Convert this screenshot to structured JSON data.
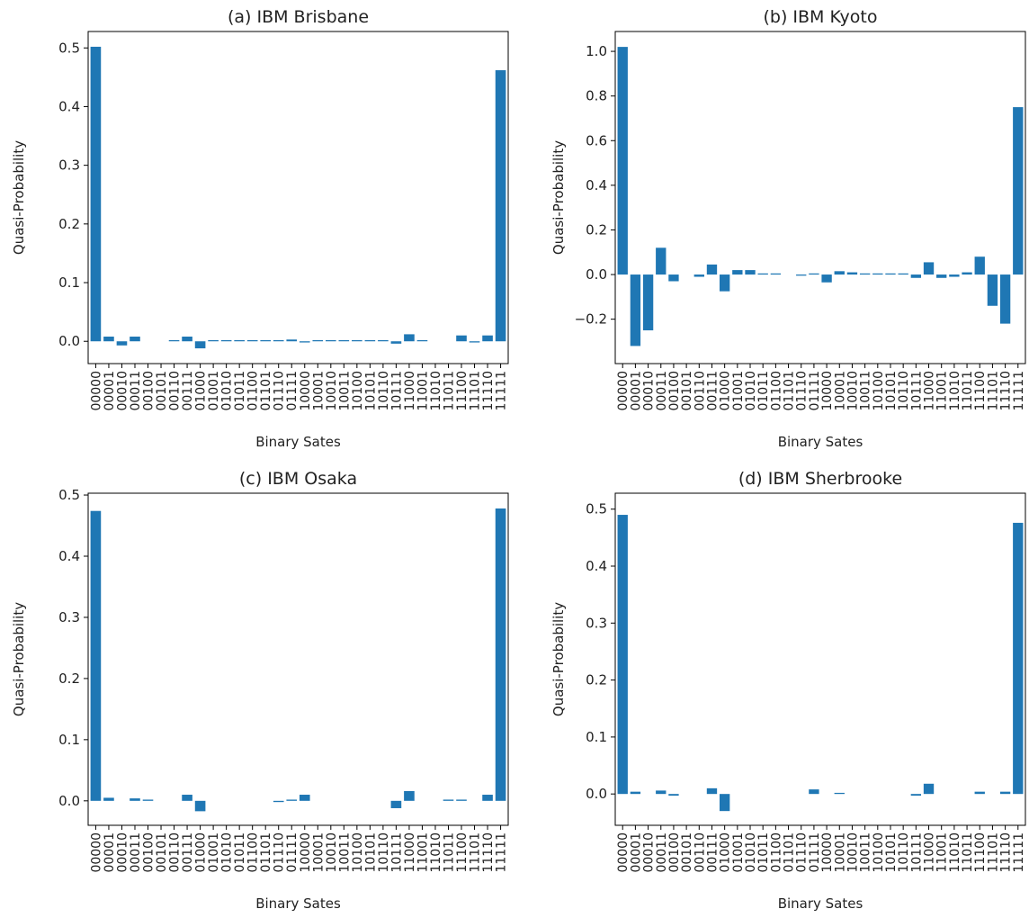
{
  "chart_data": [
    {
      "type": "bar",
      "title": "(a) IBM Brisbane",
      "x_label": "Binary Sates",
      "y_label": "Quasi-Probability",
      "color": "#1f77b4",
      "categories": [
        "00000",
        "00001",
        "00010",
        "00011",
        "00100",
        "00101",
        "00110",
        "00111",
        "01000",
        "01001",
        "01010",
        "01011",
        "01100",
        "01101",
        "01110",
        "01111",
        "10000",
        "10001",
        "10010",
        "10011",
        "10100",
        "10101",
        "10110",
        "10111",
        "11000",
        "11001",
        "11010",
        "11011",
        "11100",
        "11101",
        "11110",
        "11111"
      ],
      "values": [
        0.502,
        0.008,
        -0.007,
        0.008,
        0,
        0,
        0.002,
        0.008,
        -0.012,
        0.002,
        0.002,
        0.002,
        0.002,
        0.002,
        0.002,
        0.003,
        -0.002,
        0.002,
        0.002,
        0.002,
        0.002,
        0.002,
        0.002,
        -0.004,
        0.012,
        0.002,
        0,
        0,
        0.01,
        -0.002,
        0.01,
        0.462
      ],
      "ylim": [
        -0.038,
        0.528
      ],
      "yticks": [
        {
          "value": 0,
          "label": "0.0"
        },
        0.1,
        0.2,
        0.3,
        0.4,
        0.5
      ]
    },
    {
      "type": "bar",
      "title": "(b) IBM Kyoto",
      "x_label": "Binary Sates",
      "y_label": "Quasi-Probability",
      "color": "#1f77b4",
      "categories": [
        "00000",
        "00001",
        "00010",
        "00011",
        "00100",
        "00101",
        "00110",
        "00111",
        "01000",
        "01001",
        "01010",
        "01011",
        "01100",
        "01101",
        "01110",
        "01111",
        "10000",
        "10001",
        "10010",
        "10011",
        "10100",
        "10101",
        "10110",
        "10111",
        "11000",
        "11001",
        "11010",
        "11011",
        "11100",
        "11101",
        "11110",
        "11111"
      ],
      "values": [
        1.02,
        -0.32,
        -0.25,
        0.12,
        -0.03,
        0,
        -0.01,
        0.045,
        -0.075,
        0.02,
        0.02,
        0.005,
        0.005,
        0,
        -0.005,
        0.005,
        -0.035,
        0.015,
        0.01,
        0.005,
        0.005,
        0.005,
        0.005,
        -0.015,
        0.055,
        -0.015,
        -0.01,
        0.01,
        0.08,
        -0.14,
        -0.22,
        0.75
      ],
      "ylim": [
        -0.399,
        1.089
      ],
      "yticks": [
        {
          "value": -0.2,
          "label": "−0.2"
        },
        {
          "value": 0,
          "label": "0.0"
        },
        0.2,
        0.4,
        0.6,
        0.8,
        {
          "value": 1,
          "label": "1.0"
        }
      ]
    },
    {
      "type": "bar",
      "title": "(c) IBM Osaka",
      "x_label": "Binary Sates",
      "y_label": "Quasi-Probability",
      "color": "#1f77b4",
      "categories": [
        "00000",
        "00001",
        "00010",
        "00011",
        "00100",
        "00101",
        "00110",
        "00111",
        "01000",
        "01001",
        "01010",
        "01011",
        "01100",
        "01101",
        "01110",
        "01111",
        "10000",
        "10001",
        "10010",
        "10011",
        "10100",
        "10101",
        "10110",
        "10111",
        "11000",
        "11001",
        "11010",
        "11011",
        "11100",
        "11101",
        "11110",
        "11111"
      ],
      "values": [
        0.474,
        0.005,
        0,
        0.004,
        0.002,
        0,
        0,
        0.01,
        -0.017,
        0,
        0,
        0,
        0,
        0,
        -0.002,
        0.002,
        0.01,
        0,
        0,
        0,
        0,
        0,
        0,
        -0.012,
        0.016,
        0,
        0,
        0.002,
        0.002,
        0,
        0.01,
        0.478
      ],
      "ylim": [
        -0.04,
        0.503
      ],
      "yticks": [
        {
          "value": 0,
          "label": "0.0"
        },
        0.1,
        0.2,
        0.3,
        0.4,
        0.5
      ]
    },
    {
      "type": "bar",
      "title": "(d) IBM Sherbrooke",
      "x_label": "Binary Sates",
      "y_label": "Quasi-Probability",
      "color": "#1f77b4",
      "categories": [
        "00000",
        "00001",
        "00010",
        "00011",
        "00100",
        "00101",
        "00110",
        "00111",
        "01000",
        "01001",
        "01010",
        "01011",
        "01100",
        "01101",
        "01110",
        "01111",
        "10000",
        "10001",
        "10010",
        "10011",
        "10100",
        "10101",
        "10110",
        "10111",
        "11000",
        "11001",
        "11010",
        "11011",
        "11100",
        "11101",
        "11110",
        "11111"
      ],
      "values": [
        0.49,
        0.004,
        0,
        0.006,
        -0.003,
        0,
        0,
        0.01,
        -0.03,
        0,
        0,
        0,
        0,
        0,
        0,
        0.008,
        0,
        0.002,
        0,
        0,
        0,
        0,
        0,
        -0.003,
        0.018,
        0,
        0,
        0,
        0.004,
        0,
        0.004,
        0.476
      ],
      "ylim": [
        -0.055,
        0.528
      ],
      "yticks": [
        {
          "value": 0,
          "label": "0.0"
        },
        0.1,
        0.2,
        0.3,
        0.4,
        0.5
      ]
    }
  ]
}
